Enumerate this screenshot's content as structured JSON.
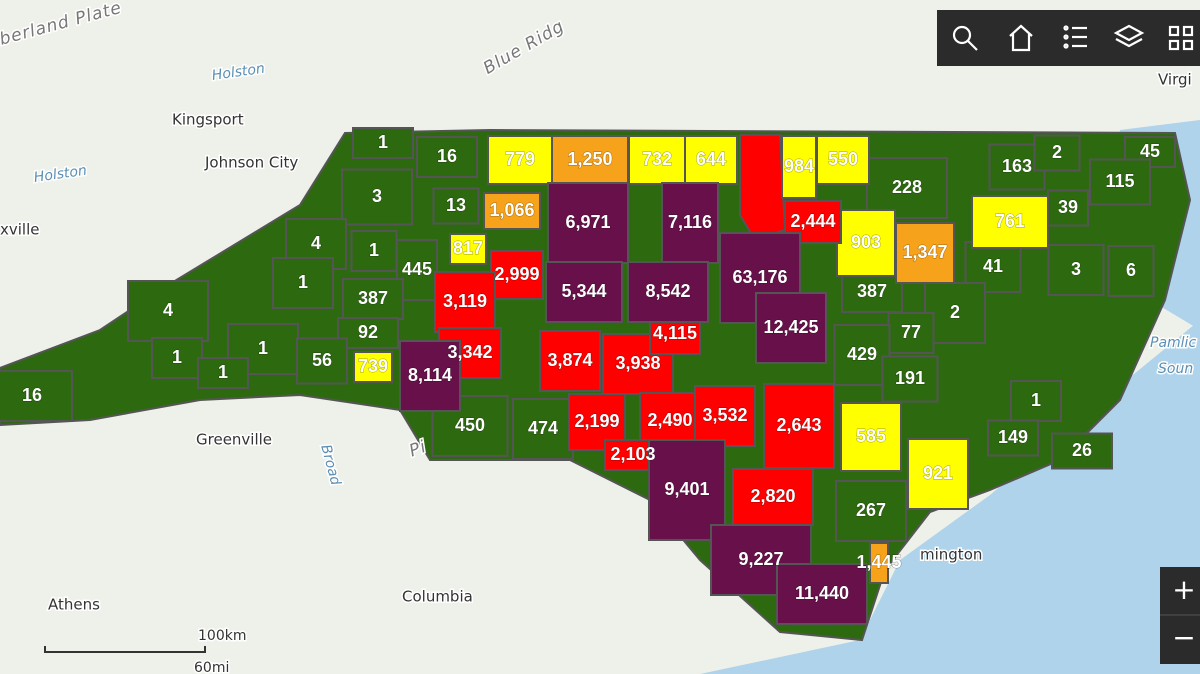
{
  "map": {
    "regions": [
      {
        "label": "1",
        "color": "#2d6a0f"
      },
      {
        "label": "16",
        "color": "#2d6a0f"
      },
      {
        "label": "3",
        "color": "#2d6a0f"
      },
      {
        "label": "13",
        "color": "#2d6a0f"
      },
      {
        "label": "4",
        "color": "#2d6a0f"
      },
      {
        "label": "1",
        "color": "#2d6a0f"
      },
      {
        "label": "445",
        "color": "#2d6a0f"
      },
      {
        "label": "1",
        "color": "#2d6a0f"
      },
      {
        "label": "387",
        "color": "#2d6a0f"
      },
      {
        "label": "4",
        "color": "#2d6a0f"
      },
      {
        "label": "92",
        "color": "#2d6a0f"
      },
      {
        "label": "1",
        "color": "#2d6a0f"
      },
      {
        "label": "56",
        "color": "#2d6a0f"
      },
      {
        "label": "1",
        "color": "#2d6a0f"
      },
      {
        "label": "1",
        "color": "#2d6a0f"
      },
      {
        "label": "16",
        "color": "#2d6a0f"
      },
      {
        "label": "450",
        "color": "#2d6a0f"
      },
      {
        "label": "474",
        "color": "#2d6a0f"
      },
      {
        "label": "228",
        "color": "#2d6a0f"
      },
      {
        "label": "163",
        "color": "#2d6a0f"
      },
      {
        "label": "2",
        "color": "#2d6a0f"
      },
      {
        "label": "45",
        "color": "#2d6a0f"
      },
      {
        "label": "115",
        "color": "#2d6a0f"
      },
      {
        "label": "39",
        "color": "#2d6a0f"
      },
      {
        "label": "41",
        "color": "#2d6a0f"
      },
      {
        "label": "3",
        "color": "#2d6a0f"
      },
      {
        "label": "6",
        "color": "#2d6a0f"
      },
      {
        "label": "387",
        "color": "#2d6a0f"
      },
      {
        "label": "2",
        "color": "#2d6a0f"
      },
      {
        "label": "77",
        "color": "#2d6a0f"
      },
      {
        "label": "429",
        "color": "#2d6a0f"
      },
      {
        "label": "191",
        "color": "#2d6a0f"
      },
      {
        "label": "1",
        "color": "#2d6a0f"
      },
      {
        "label": "149",
        "color": "#2d6a0f"
      },
      {
        "label": "26",
        "color": "#2d6a0f"
      },
      {
        "label": "267",
        "color": "#2d6a0f"
      },
      {
        "label": "779",
        "color": "#ffff00"
      },
      {
        "label": "732",
        "color": "#ffff00"
      },
      {
        "label": "644",
        "color": "#ffff00"
      },
      {
        "label": "984",
        "color": "#ffff00"
      },
      {
        "label": "550",
        "color": "#ffff00"
      },
      {
        "label": "817",
        "color": "#ffff00"
      },
      {
        "label": "903",
        "color": "#ffff00"
      },
      {
        "label": "761",
        "color": "#ffff00"
      },
      {
        "label": "739",
        "color": "#ffff00"
      },
      {
        "label": "585",
        "color": "#ffff00"
      },
      {
        "label": "921",
        "color": "#ffff00"
      },
      {
        "label": "1,250",
        "color": "#f7a21b"
      },
      {
        "label": "1,066",
        "color": "#f7a21b"
      },
      {
        "label": "1,347",
        "color": "#f7a21b"
      },
      {
        "label": "1,445",
        "color": "#f7a21b"
      },
      {
        "label": "2,444",
        "color": "#ff0000"
      },
      {
        "label": "2,999",
        "color": "#ff0000"
      },
      {
        "label": "3,119",
        "color": "#ff0000"
      },
      {
        "label": "3,342",
        "color": "#ff0000"
      },
      {
        "label": "3,874",
        "color": "#ff0000"
      },
      {
        "label": "3,938",
        "color": "#ff0000"
      },
      {
        "label": "4,115",
        "color": "#ff0000"
      },
      {
        "label": "2,199",
        "color": "#ff0000"
      },
      {
        "label": "2,490",
        "color": "#ff0000"
      },
      {
        "label": "3,532",
        "color": "#ff0000"
      },
      {
        "label": "2,643",
        "color": "#ff0000"
      },
      {
        "label": "2,103",
        "color": "#ff0000"
      },
      {
        "label": "2,820",
        "color": "#ff0000"
      },
      {
        "label": "6,971",
        "color": "#68104a"
      },
      {
        "label": "7,116",
        "color": "#68104a"
      },
      {
        "label": "63,176",
        "color": "#68104a"
      },
      {
        "label": "5,344",
        "color": "#68104a"
      },
      {
        "label": "8,542",
        "color": "#68104a"
      },
      {
        "label": "12,425",
        "color": "#68104a"
      },
      {
        "label": "8,114",
        "color": "#68104a"
      },
      {
        "label": "9,401",
        "color": "#68104a"
      },
      {
        "label": "9,227",
        "color": "#68104a"
      },
      {
        "label": "11,440",
        "color": "#68104a"
      }
    ],
    "places": [
      "Kingsport",
      "Johnson City",
      "Holston",
      "Holston",
      "xville",
      "Blue Ridg",
      "berland Plate",
      "Greenville",
      "Columbia",
      "Athens",
      "Broad",
      "Virgi",
      "Pamlic",
      "Soun",
      "mington",
      "Pi"
    ],
    "scale": {
      "km": "100km",
      "mi": "60mi"
    },
    "zoom": {
      "in": "+",
      "out": "−"
    }
  }
}
